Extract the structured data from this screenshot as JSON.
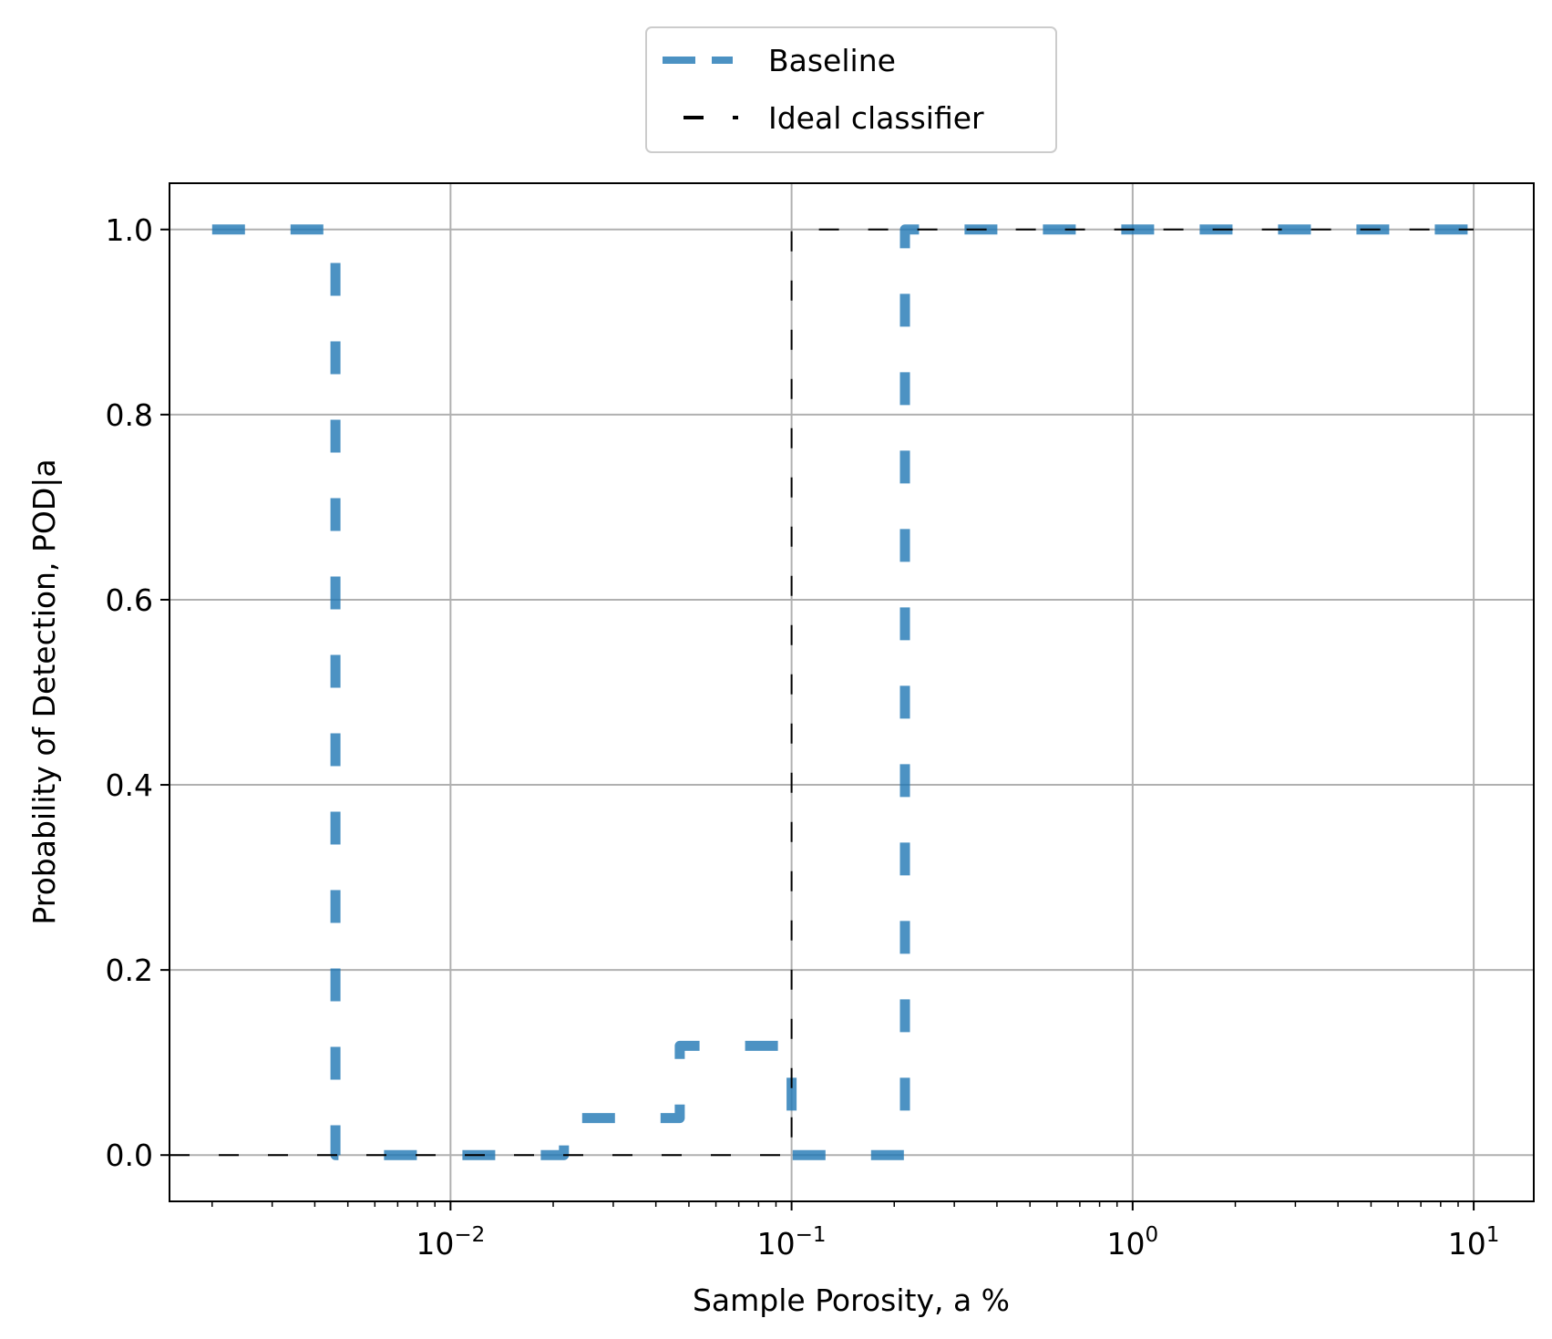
{
  "chart_data": {
    "type": "line",
    "title": "",
    "xlabel": "Sample Porosity, a %",
    "ylabel": "Probability of Detection, POD|a",
    "x_scale": "log",
    "xlim": [
      0.0015,
      15
    ],
    "ylim": [
      -0.05,
      1.05
    ],
    "grid": true,
    "legend_position": "top-center",
    "x_ticks": [
      {
        "value": 0.01,
        "base": "10",
        "exp": "−2"
      },
      {
        "value": 0.1,
        "base": "10",
        "exp": "−1"
      },
      {
        "value": 1,
        "base": "10",
        "exp": "0"
      },
      {
        "value": 10,
        "base": "10",
        "exp": "1"
      }
    ],
    "y_ticks": [
      {
        "value": 0.0,
        "label": "0.0"
      },
      {
        "value": 0.2,
        "label": "0.2"
      },
      {
        "value": 0.4,
        "label": "0.4"
      },
      {
        "value": 0.6,
        "label": "0.6"
      },
      {
        "value": 0.8,
        "label": "0.8"
      },
      {
        "value": 1.0,
        "label": "1.0"
      }
    ],
    "series": [
      {
        "name": "Baseline",
        "color": "#1f77b4",
        "style": "dashed-thick",
        "x": [
          0.002,
          0.0046,
          0.0046,
          0.0215,
          0.0215,
          0.047,
          0.047,
          0.1,
          0.1,
          0.215,
          0.215,
          10
        ],
        "y": [
          1.0,
          1.0,
          0.0,
          0.0,
          0.04,
          0.04,
          0.118,
          0.118,
          0.0,
          0.0,
          1.0,
          1.0
        ]
      },
      {
        "name": "Ideal classifier",
        "color": "#000000",
        "style": "dashed-thin",
        "x": [
          0.0015,
          0.1,
          0.1,
          10
        ],
        "y": [
          0.0,
          0.0,
          1.0,
          1.0
        ]
      }
    ]
  }
}
